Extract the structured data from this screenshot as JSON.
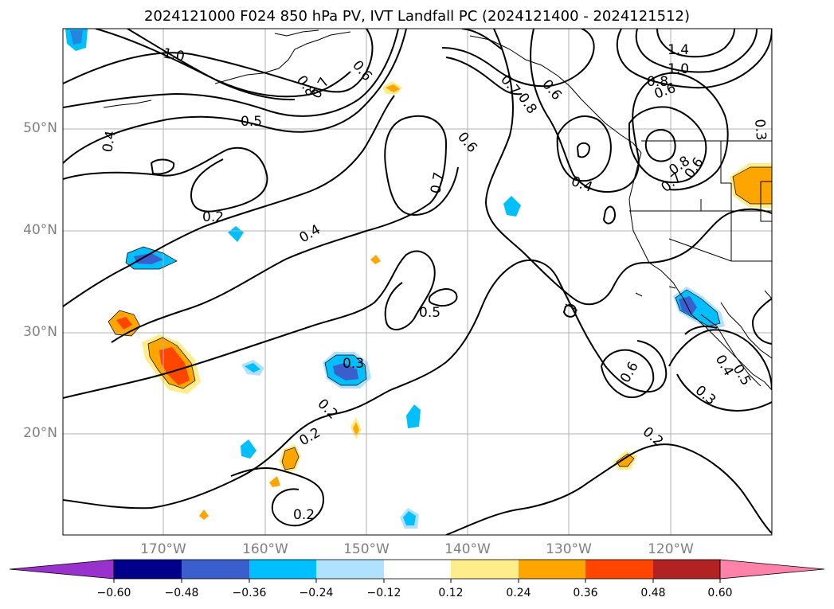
{
  "title": "2024121000 F024 850 hPa PV, IVT Landfall PC (2024121400 - 2024121512)",
  "map": {
    "lat_labels": [
      "50°N",
      "40°N",
      "30°N",
      "20°N"
    ],
    "lon_labels": [
      "170°W",
      "160°W",
      "150°W",
      "140°W",
      "130°W",
      "120°W"
    ],
    "contour_labels": [
      "1.0",
      "0.8",
      "0.7",
      "0.6",
      "0.5",
      "0.4",
      "0.2",
      "0.6",
      "0.7",
      "0.7",
      "0.8",
      "0.6",
      "0.4",
      "1.4",
      "1.0",
      "0.8",
      "0.6",
      "0.3",
      "0.8",
      "0.7",
      "0.6",
      "0.4",
      "0.5",
      "0.3",
      "0.2",
      "0.2",
      "0.2",
      "0.6",
      "0.4",
      "0.5",
      "0.3",
      "0.2"
    ],
    "colors": {
      "contour": "#000000",
      "coast": "#000000",
      "grid": "#b0b0b0"
    }
  },
  "colorbar": {
    "tick_labels": [
      "−0.60",
      "−0.48",
      "−0.36",
      "−0.24",
      "−0.12",
      "0.12",
      "0.24",
      "0.36",
      "0.48",
      "0.60"
    ],
    "colors": [
      "#9932cc",
      "#00008b",
      "#3a5fcd",
      "#00bfff",
      "#b0e2ff",
      "#ffffff",
      "#ffec8b",
      "#ffa500",
      "#ff4500",
      "#b22222",
      "#ff82ab"
    ]
  }
}
